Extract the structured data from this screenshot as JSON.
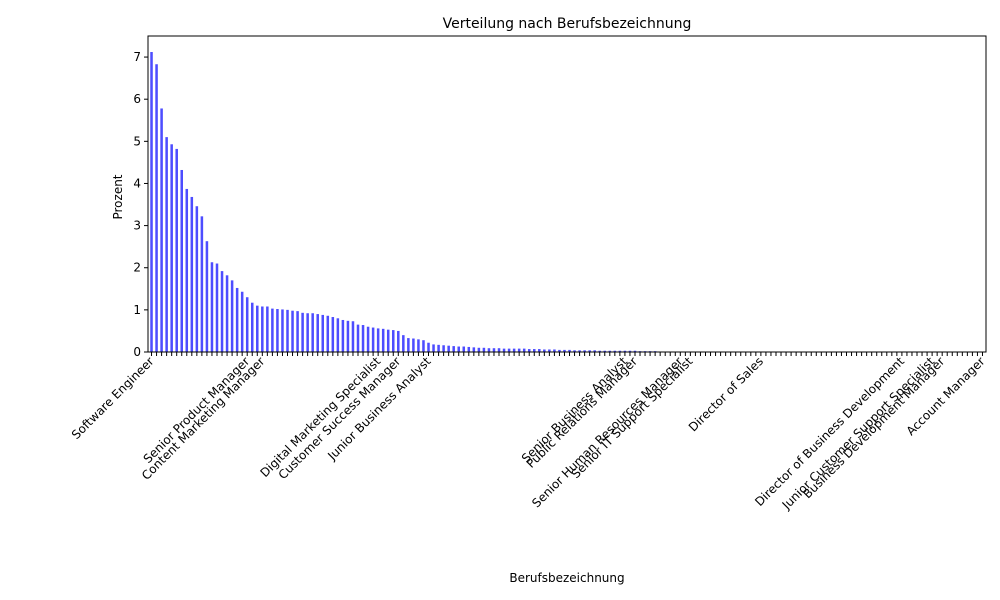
{
  "chart_data": {
    "type": "bar",
    "title": "Verteilung nach Berufsbezeichnung",
    "x_label": "Berufsbezeichnung",
    "y_label": "Prozent",
    "color": "#4d4dff",
    "categories": [
      "Software Engineer",
      null,
      null,
      null,
      null,
      null,
      null,
      null,
      null,
      null,
      null,
      null,
      null,
      null,
      null,
      null,
      null,
      null,
      null,
      "Senior Product Manager",
      null,
      null,
      "Content Marketing Manager",
      null,
      null,
      null,
      null,
      null,
      null,
      null,
      null,
      null,
      null,
      null,
      null,
      null,
      null,
      null,
      null,
      null,
      null,
      null,
      null,
      null,
      null,
      "Digital Marketing Specialist",
      null,
      null,
      null,
      "Customer Success Manager",
      null,
      null,
      null,
      null,
      null,
      "Junior Business Analyst",
      null,
      null,
      null,
      null,
      null,
      null,
      null,
      null,
      null,
      null,
      null,
      null,
      null,
      null,
      null,
      null,
      null,
      null,
      null,
      null,
      null,
      null,
      null,
      null,
      null,
      null,
      null,
      null,
      null,
      null,
      null,
      null,
      null,
      null,
      null,
      null,
      null,
      null,
      "Senior Business Analyst",
      null,
      "Public Relations Manager",
      null,
      null,
      null,
      null,
      null,
      null,
      null,
      null,
      "Senior Human Resources Manager",
      null,
      "Senior IT Support Specialist",
      null,
      null,
      null,
      null,
      null,
      null,
      null,
      null,
      null,
      null,
      null,
      null,
      null,
      "Director of Sales",
      null,
      null,
      null,
      null,
      null,
      null,
      null,
      null,
      null,
      null,
      null,
      null,
      null,
      null,
      null,
      null,
      null,
      null,
      null,
      null,
      null,
      null,
      null,
      null,
      null,
      null,
      null,
      "Director of Business Development",
      null,
      null,
      null,
      null,
      null,
      "Junior Customer Support Specialist",
      null,
      "Business Development Manager",
      null,
      null,
      null,
      null,
      null,
      null,
      null,
      "Account Manager"
    ],
    "values": [
      7.12,
      6.83,
      5.78,
      5.1,
      4.93,
      4.82,
      4.32,
      3.87,
      3.68,
      3.46,
      3.22,
      2.63,
      2.13,
      2.1,
      1.92,
      1.82,
      1.7,
      1.52,
      1.43,
      1.3,
      1.17,
      1.1,
      1.08,
      1.08,
      1.03,
      1.02,
      1.01,
      1.0,
      0.98,
      0.97,
      0.93,
      0.92,
      0.92,
      0.9,
      0.88,
      0.86,
      0.83,
      0.8,
      0.76,
      0.74,
      0.73,
      0.65,
      0.64,
      0.6,
      0.58,
      0.56,
      0.55,
      0.53,
      0.52,
      0.5,
      0.4,
      0.33,
      0.32,
      0.3,
      0.28,
      0.22,
      0.18,
      0.17,
      0.16,
      0.15,
      0.14,
      0.13,
      0.13,
      0.12,
      0.11,
      0.1,
      0.1,
      0.09,
      0.09,
      0.09,
      0.08,
      0.08,
      0.08,
      0.08,
      0.08,
      0.07,
      0.07,
      0.07,
      0.06,
      0.06,
      0.06,
      0.05,
      0.05,
      0.05,
      0.04,
      0.04,
      0.04,
      0.04,
      0.04,
      0.03,
      0.03,
      0.03,
      0.03,
      0.03,
      0.03,
      0.03,
      0.03,
      0.02,
      0.02,
      0.02,
      0.02,
      0,
      0,
      0,
      0,
      0,
      0,
      0,
      0,
      0,
      0,
      0,
      0,
      0,
      0,
      0,
      0,
      0,
      0,
      0,
      0,
      0,
      0,
      0,
      0,
      0,
      0,
      0,
      0,
      0,
      0,
      0,
      0,
      0,
      0,
      0,
      0,
      0,
      0,
      0,
      0,
      0,
      0,
      0,
      0,
      0,
      0,
      0,
      0,
      0,
      0,
      0,
      0,
      0,
      0,
      0,
      0,
      0,
      0,
      0,
      0,
      0,
      0,
      0,
      0,
      0
    ],
    "ylim": [
      0,
      7.5
    ],
    "yticks": [
      0,
      1,
      2,
      3,
      4,
      5,
      6,
      7
    ]
  }
}
